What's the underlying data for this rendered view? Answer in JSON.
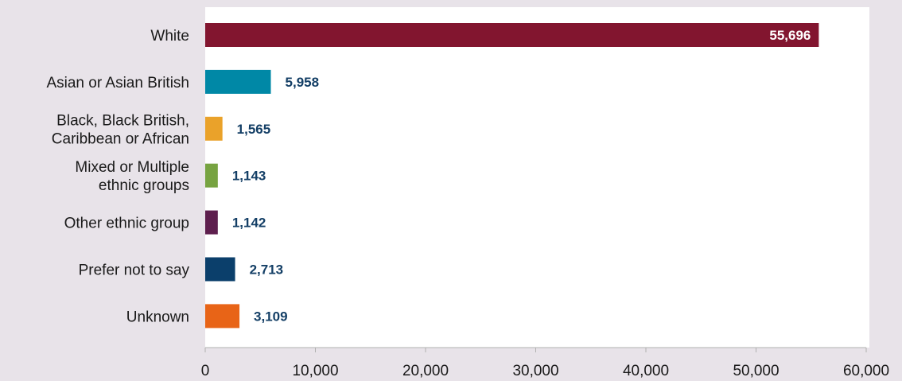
{
  "chart_data": {
    "type": "bar",
    "orientation": "horizontal",
    "categories": [
      [
        "White"
      ],
      [
        "Asian or Asian British"
      ],
      [
        "Black, Black British,",
        "Caribbean or African"
      ],
      [
        "Mixed or Multiple",
        "ethnic groups"
      ],
      [
        "Other ethnic group"
      ],
      [
        "Prefer not to say"
      ],
      [
        "Unknown"
      ]
    ],
    "values": [
      55696,
      5958,
      1565,
      1143,
      1142,
      2713,
      3109
    ],
    "value_labels": [
      "55,696",
      "5,958",
      "1,565",
      "1,143",
      "1,142",
      "2,713",
      "3,109"
    ],
    "colors": [
      "#82152f",
      "#0088a6",
      "#eaa22a",
      "#77a341",
      "#5e1f4e",
      "#0b3f6b",
      "#e86417"
    ],
    "value_label_colors": [
      "#ffffff",
      "#143f66",
      "#143f66",
      "#143f66",
      "#143f66",
      "#143f66",
      "#143f66"
    ],
    "xlim": [
      0,
      60000
    ],
    "x_ticks": [
      0,
      10000,
      20000,
      30000,
      40000,
      50000,
      60000
    ],
    "x_tick_labels": [
      "0",
      "10,000",
      "20,000",
      "30,000",
      "40,000",
      "50,000",
      "60,000"
    ],
    "title": "",
    "xlabel": "",
    "ylabel": "",
    "grid": false,
    "plot_background": "#ffffff",
    "page_background": "#e8e3e9"
  }
}
